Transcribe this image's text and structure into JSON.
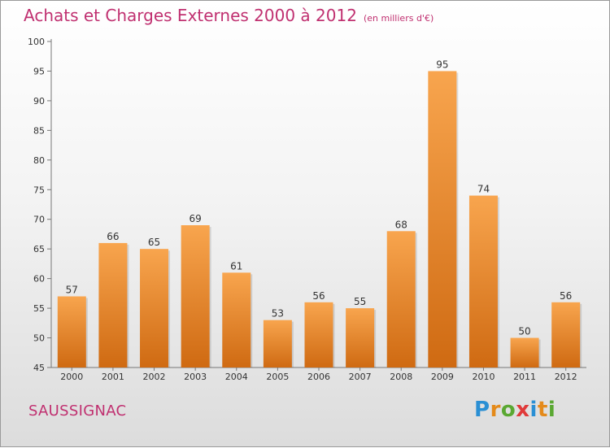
{
  "title": "Achats et Charges Externes 2000 à 2012",
  "unit": "(en milliers d'€)",
  "commune": "SAUSSIGNAC",
  "logo": {
    "letters": [
      "P",
      "r",
      "o",
      "x",
      "i",
      "t",
      "i"
    ],
    "colors": [
      "#2a8fd4",
      "#e48a1a",
      "#5aa832",
      "#e03a3a",
      "#2a8fd4",
      "#e48a1a",
      "#5aa832"
    ]
  },
  "chart_data": {
    "type": "bar",
    "title": "Achats et Charges Externes 2000 à 2012",
    "subtitle": "(en milliers d'€)",
    "categories": [
      "2000",
      "2001",
      "2002",
      "2003",
      "2004",
      "2005",
      "2006",
      "2007",
      "2008",
      "2009",
      "2010",
      "2011",
      "2012"
    ],
    "values": [
      57,
      66,
      65,
      69,
      61,
      53,
      56,
      55,
      68,
      95,
      74,
      50,
      56
    ],
    "ylim": [
      45,
      100
    ],
    "yticks": [
      45,
      50,
      55,
      60,
      65,
      70,
      75,
      80,
      85,
      90,
      95,
      100
    ],
    "grid": false,
    "bar_color": "#f08a2a"
  }
}
